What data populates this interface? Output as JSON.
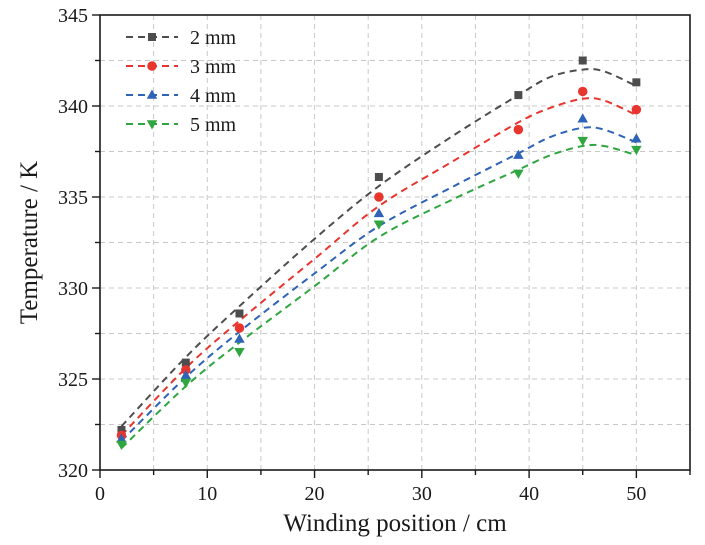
{
  "chart_data": {
    "type": "scatter",
    "title": "",
    "xlabel": "Winding position / cm",
    "ylabel": "Temperature / K",
    "xlim": [
      0,
      55
    ],
    "ylim": [
      320,
      345
    ],
    "xticks": [
      0,
      10,
      20,
      30,
      40,
      50
    ],
    "yticks": [
      320,
      325,
      330,
      335,
      340,
      345
    ],
    "grid": true,
    "legend_position": "top-left",
    "series": [
      {
        "name": "2 mm",
        "marker": "square",
        "color": "#4d4d4d",
        "x": [
          2,
          8,
          13,
          26,
          39,
          45,
          50
        ],
        "y": [
          322.2,
          325.9,
          328.6,
          336.1,
          340.6,
          342.5,
          341.3
        ],
        "fit_x": [
          2,
          8,
          13,
          20,
          26,
          33,
          39,
          42,
          45,
          47,
          50
        ],
        "fit_y": [
          322.4,
          326.2,
          329.0,
          332.7,
          335.6,
          338.4,
          340.6,
          341.6,
          342.0,
          341.9,
          341.1
        ]
      },
      {
        "name": "3 mm",
        "marker": "circle",
        "color": "#e8352e",
        "x": [
          2,
          8,
          13,
          26,
          39,
          45,
          50
        ],
        "y": [
          321.9,
          325.5,
          327.8,
          335.0,
          338.7,
          340.8,
          339.8
        ],
        "fit_x": [
          2,
          8,
          13,
          20,
          26,
          33,
          39,
          42,
          45,
          47,
          50
        ],
        "fit_y": [
          321.9,
          325.6,
          328.2,
          331.6,
          334.5,
          337.0,
          339.1,
          339.9,
          340.4,
          340.3,
          339.5
        ]
      },
      {
        "name": "4 mm",
        "marker": "triangle-up",
        "color": "#2f63b5",
        "x": [
          2,
          8,
          13,
          26,
          39,
          45,
          50
        ],
        "y": [
          321.7,
          325.2,
          327.2,
          334.1,
          337.3,
          339.3,
          338.2
        ],
        "fit_x": [
          2,
          8,
          13,
          20,
          26,
          33,
          39,
          42,
          45,
          47,
          50
        ],
        "fit_y": [
          321.6,
          325.1,
          327.6,
          330.8,
          333.4,
          335.6,
          337.4,
          338.3,
          338.8,
          338.7,
          338.0
        ]
      },
      {
        "name": "5 mm",
        "marker": "triangle-down",
        "color": "#2fa63f",
        "x": [
          2,
          8,
          13,
          26,
          39,
          45,
          50
        ],
        "y": [
          321.4,
          324.8,
          326.5,
          333.5,
          336.3,
          338.1,
          337.6
        ],
        "fit_x": [
          2,
          8,
          13,
          20,
          26,
          33,
          39,
          42,
          45,
          47,
          50
        ],
        "fit_y": [
          321.2,
          324.6,
          327.0,
          330.1,
          332.8,
          334.9,
          336.5,
          337.3,
          337.8,
          337.8,
          337.3
        ]
      }
    ]
  }
}
